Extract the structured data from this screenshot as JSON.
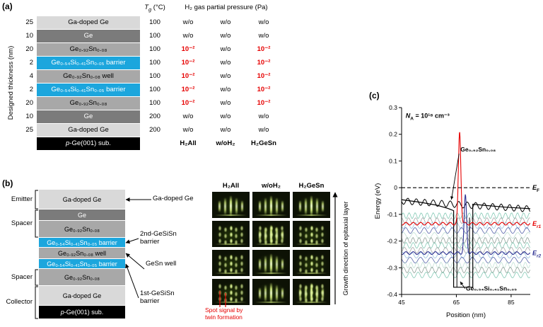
{
  "colors": {
    "gadoped_bg": "#d9d9d9",
    "gadoped_text": "#000000",
    "ge_bg": "#7b7b7b",
    "ge_text": "#ffffff",
    "gesn_bg": "#a8a8a8",
    "gesn_text": "#000000",
    "barrier_bg": "#1ca6dd",
    "barrier_text": "#ffffff",
    "substrate_bg": "#000000",
    "substrate_text": "#ffffff",
    "highlight_red": "#e60000",
    "er2_blue": "#2e3192",
    "rheed_glow": "#cfe87a",
    "rheed_bright": "#f2ffd0",
    "wavefunction_palette": [
      "#6fbfa8",
      "#999999",
      "#86b7d8",
      "#3a4a9b",
      "#b9ddcf",
      "#7d8f86"
    ]
  },
  "panel_a": {
    "label": "(a)",
    "y_axis_label": "Designed thickness (nm)",
    "header": {
      "tg_pre": "T",
      "tg_sub": "g",
      "tg_unit": " (°C)",
      "pressure_title": "H₂ gas partial pressure (Pa)"
    },
    "rows": [
      {
        "t": "25",
        "layer": "Ga-doped Ge",
        "style": "gadoped",
        "tg": "100",
        "p": [
          "w/o",
          "w/o",
          "w/o"
        ],
        "red": [
          false,
          false,
          false
        ]
      },
      {
        "t": "10",
        "layer": "Ge",
        "style": "ge",
        "tg": "100",
        "p": [
          "w/o",
          "w/o",
          "w/o"
        ],
        "red": [
          false,
          false,
          false
        ]
      },
      {
        "t": "20",
        "layer": "Ge₀.₉₂Sn₀.₀₈",
        "style": "gesn",
        "tg": "100",
        "p": [
          "10⁻²",
          "w/o",
          "10⁻²"
        ],
        "red": [
          true,
          false,
          true
        ]
      },
      {
        "t": "2",
        "layer": "Ge₀.₅₄Si₀.₄₁Sn₀.₀₅ barrier",
        "style": "barrier",
        "tg": "100",
        "p": [
          "10⁻²",
          "w/o",
          "10⁻²"
        ],
        "red": [
          true,
          false,
          true
        ]
      },
      {
        "t": "4",
        "layer": "Ge₀.₉₂Sn₀.₀₈ well",
        "style": "gesn",
        "tg": "100",
        "p": [
          "10⁻²",
          "w/o",
          "10⁻²"
        ],
        "red": [
          true,
          false,
          true
        ]
      },
      {
        "t": "2",
        "layer": "Ge₀.₅₄Si₀.₄₁Sn₀.₀₅ barrier",
        "style": "barrier",
        "tg": "100",
        "p": [
          "10⁻²",
          "w/o",
          "10⁻²"
        ],
        "red": [
          true,
          false,
          true
        ]
      },
      {
        "t": "20",
        "layer": "Ge₀.₉₂Sn₀.₀₈",
        "style": "gesn",
        "tg": "100",
        "p": [
          "10⁻²",
          "w/o",
          "10⁻²"
        ],
        "red": [
          true,
          false,
          true
        ]
      },
      {
        "t": "10",
        "layer": "Ge",
        "style": "ge",
        "tg": "200",
        "p": [
          "w/o",
          "w/o",
          "w/o"
        ],
        "red": [
          false,
          false,
          false
        ]
      },
      {
        "t": "25",
        "layer": "Ga-doped Ge",
        "style": "gadoped",
        "tg": "200",
        "p": [
          "w/o",
          "w/o",
          "w/o"
        ],
        "red": [
          false,
          false,
          false
        ]
      }
    ],
    "substrate": {
      "pre": "p",
      "rest": "-Ge(001) sub."
    },
    "condition_headers": [
      "H₂All",
      "w/oH₂",
      "H₂GeSn"
    ]
  },
  "panel_b": {
    "label": "(b)",
    "stack": [
      {
        "text": "Ga-doped Ge",
        "style": "gadoped"
      },
      {
        "text": "Ge",
        "style": "ge"
      },
      {
        "text": "Ge₀.₉₂Sn₀.₀₈",
        "style": "gesn"
      },
      {
        "text": "Ge₀.₅₄Si₀.₄₁Sn₀.₀₅ barrier",
        "style": "barrier"
      },
      {
        "text": "Ge₀.₉₂Sn₀.₀₈ well",
        "style": "gesn"
      },
      {
        "text": "Ge₀.₅₄Si₀.₄₁Sn₀.₀₅ barrier",
        "style": "barrier"
      },
      {
        "text": "Ge₀.₉₂Sn₀.₀₈",
        "style": "gesn"
      },
      {
        "text": "Ga-doped Ge",
        "style": "gadoped"
      },
      {
        "text": "p-Ge(001) sub.",
        "style": "substrate",
        "italic_first": true
      }
    ],
    "groups": [
      {
        "label": "Emitter",
        "from": 0,
        "to": 0
      },
      {
        "label": "Spacer",
        "from": 1,
        "to": 2
      },
      {
        "label": "Spacer",
        "from": 6,
        "to": 6
      },
      {
        "label": "Collector",
        "from": 7,
        "to": 8
      }
    ],
    "pointers": [
      {
        "label": "Ga-doped Ge",
        "layer": 0
      },
      {
        "label": "2nd-GeSiSn\nbarrier",
        "layer": 3
      },
      {
        "label": "GeSn well",
        "layer": 4
      },
      {
        "label": "1st-GeSiSn\nbarrier",
        "layer": 5
      }
    ],
    "rheed": {
      "col_headers": [
        "H₂All",
        "w/oH₂",
        "H₂GeSn"
      ],
      "pattern_grid": [
        [
          "streak",
          "streak",
          "streak"
        ],
        [
          "spot",
          "mix",
          "spot"
        ],
        [
          "spot",
          "streak",
          "spot"
        ],
        [
          "spot",
          "streak",
          "mix"
        ]
      ]
    },
    "growth_label": "Growth direction of epitaxial layer",
    "twin_note": "Spot signal by\ntwin formation"
  },
  "panel_c": {
    "label": "(c)"
  },
  "chart_data": {
    "type": "line",
    "xlabel": "Position (nm)",
    "ylabel": "Energy (eV)",
    "xlim": [
      45,
      92
    ],
    "ylim": [
      -0.4,
      0.3
    ],
    "xticks": [
      45,
      65,
      85
    ],
    "yticks": [
      0.3,
      0.2,
      0.1,
      0,
      -0.1,
      -0.2,
      -0.3,
      -0.4
    ],
    "fermi_level_eV": 0,
    "doping_label": {
      "pre": "N",
      "sub": "A",
      "post": " = 10¹⁸ cm⁻³"
    },
    "fermi_label": {
      "pre": "E",
      "sub": "F"
    },
    "levels": [
      {
        "label_pre": "E",
        "label_sub": "r1",
        "energy_eV": -0.135,
        "peak_x_nm": 66.2,
        "peak_top_eV": 0.21,
        "sigma_nm": 0.45,
        "color": "#e60000"
      },
      {
        "label_pre": "E",
        "label_sub": "r2",
        "energy_eV": -0.245,
        "peak_x_nm": 68.3,
        "peak_top_eV": -0.03,
        "sigma_nm": 0.45,
        "color": "#2e3192"
      }
    ],
    "well": {
      "material": "Ge₀.₅₄Si₀.₄₁Sn₀.₀₅",
      "outline": [
        [
          45,
          -0.045
        ],
        [
          52,
          -0.055
        ],
        [
          58,
          -0.066
        ],
        [
          62,
          -0.078
        ],
        [
          64,
          -0.086
        ],
        [
          64,
          -0.373
        ],
        [
          71,
          -0.373
        ],
        [
          71,
          -0.062
        ],
        [
          76,
          -0.067
        ],
        [
          83,
          -0.073
        ],
        [
          92,
          -0.079
        ]
      ],
      "inner_walls": [
        {
          "x": 65.2,
          "from": -0.373,
          "to": -0.112
        },
        {
          "x": 69.8,
          "from": -0.373,
          "to": -0.112
        }
      ]
    },
    "band_label": {
      "text": "Ge₀.₉₂Sn₀.₀₈",
      "x_nm": 66.5,
      "y_eV": 0.135,
      "arrow_to": [
        63.2,
        -0.05
      ]
    },
    "envelope": {
      "y_start_eV": -0.05,
      "y_end_eV": -0.08,
      "ripple_amp_eV": 0.012,
      "ripple_period_nm": 3.1
    },
    "wavefunctions": {
      "count": 13,
      "first_eV": -0.105,
      "step_eV": -0.0185,
      "amp_eV": 0.011,
      "period_nm_min": 2.2,
      "period_nm_max": 3.8
    }
  }
}
